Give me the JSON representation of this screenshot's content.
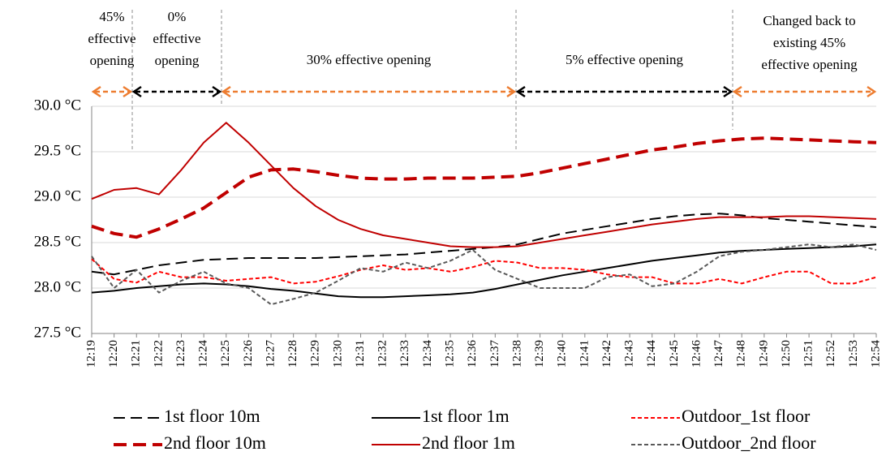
{
  "chart_data": {
    "type": "line",
    "categories": [
      "12:19",
      "12:20",
      "12:21",
      "12:22",
      "12:23",
      "12:24",
      "12:25",
      "12:26",
      "12:27",
      "12:28",
      "12:29",
      "12:30",
      "12:31",
      "12:32",
      "12:33",
      "12:34",
      "12:35",
      "12:36",
      "12:37",
      "12:38",
      "12:39",
      "12:40",
      "12:41",
      "12:42",
      "12:43",
      "12:44",
      "12:45",
      "12:46",
      "12:47",
      "12:48",
      "12:49",
      "12:50",
      "12:51",
      "12:52",
      "12:53",
      "12:54"
    ],
    "ylim": [
      27.5,
      30.0
    ],
    "yticks": [
      {
        "value": 27.5,
        "label": "27.5 °C"
      },
      {
        "value": 28.0,
        "label": "28.0 °C"
      },
      {
        "value": 28.5,
        "label": "28.5 °C"
      },
      {
        "value": 29.0,
        "label": "29.0 °C"
      },
      {
        "value": 29.5,
        "label": "29.5 °C"
      },
      {
        "value": 30.0,
        "label": "30.0 °C"
      }
    ],
    "grid": true,
    "legend": "bottom",
    "annotations": [
      {
        "lines": [
          "45%",
          "effective",
          "opening"
        ],
        "color": "#ed7d31"
      },
      {
        "lines": [
          "0%",
          "effective",
          "opening"
        ],
        "color": "#000000"
      },
      {
        "lines": [
          "30% effective opening"
        ],
        "color": "#ed7d31"
      },
      {
        "lines": [
          "5% effective opening"
        ],
        "color": "#000000"
      },
      {
        "lines": [
          "Changed back to",
          "existing 45%",
          "effective opening"
        ],
        "color": "#ed7d31"
      }
    ],
    "series": [
      {
        "name": "1st floor 10m",
        "color": "#000000",
        "line_style": "dashed",
        "line_width": 2,
        "values": [
          28.18,
          28.15,
          28.2,
          28.25,
          28.28,
          28.31,
          28.32,
          28.33,
          28.33,
          28.33,
          28.33,
          28.34,
          28.35,
          28.36,
          28.37,
          28.39,
          28.41,
          28.43,
          28.45,
          28.48,
          28.54,
          28.6,
          28.64,
          28.68,
          28.72,
          28.76,
          28.79,
          28.81,
          28.82,
          28.8,
          28.77,
          28.75,
          28.73,
          28.71,
          28.69,
          28.67
        ]
      },
      {
        "name": "2nd floor 10m",
        "color": "#c00000",
        "line_style": "dashed",
        "line_width": 4,
        "values": [
          28.68,
          28.6,
          28.56,
          28.65,
          28.76,
          28.88,
          29.05,
          29.22,
          29.3,
          29.31,
          29.28,
          29.24,
          29.21,
          29.2,
          29.2,
          29.21,
          29.21,
          29.21,
          29.22,
          29.23,
          29.27,
          29.32,
          29.37,
          29.42,
          29.47,
          29.52,
          29.55,
          29.59,
          29.62,
          29.64,
          29.65,
          29.64,
          29.63,
          29.62,
          29.61,
          29.6
        ]
      },
      {
        "name": "1st floor 1m",
        "color": "#000000",
        "line_style": "solid",
        "line_width": 2,
        "values": [
          27.95,
          27.97,
          28.0,
          28.02,
          28.04,
          28.05,
          28.04,
          28.02,
          27.99,
          27.97,
          27.94,
          27.91,
          27.9,
          27.9,
          27.91,
          27.92,
          27.93,
          27.95,
          27.99,
          28.04,
          28.09,
          28.14,
          28.18,
          28.22,
          28.26,
          28.3,
          28.33,
          28.36,
          28.39,
          28.41,
          28.42,
          28.43,
          28.44,
          28.45,
          28.46,
          28.48
        ]
      },
      {
        "name": "2nd floor 1m",
        "color": "#c00000",
        "line_style": "solid",
        "line_width": 2,
        "values": [
          28.98,
          29.08,
          29.1,
          29.03,
          29.3,
          29.6,
          29.82,
          29.6,
          29.35,
          29.1,
          28.9,
          28.75,
          28.65,
          28.58,
          28.54,
          28.5,
          28.46,
          28.45,
          28.45,
          28.46,
          28.5,
          28.54,
          28.58,
          28.62,
          28.66,
          28.7,
          28.73,
          28.76,
          28.78,
          28.78,
          28.78,
          28.79,
          28.79,
          28.78,
          28.77,
          28.76
        ]
      },
      {
        "name": "Outdoor_1st floor",
        "color": "#ff0000",
        "line_style": "dotted",
        "line_width": 2,
        "values": [
          28.32,
          28.1,
          28.06,
          28.18,
          28.12,
          28.12,
          28.08,
          28.1,
          28.12,
          28.05,
          28.07,
          28.13,
          28.2,
          28.25,
          28.2,
          28.22,
          28.18,
          28.23,
          28.3,
          28.28,
          28.22,
          28.22,
          28.2,
          28.15,
          28.12,
          28.12,
          28.05,
          28.05,
          28.1,
          28.05,
          28.12,
          28.18,
          28.18,
          28.05,
          28.05,
          28.12
        ]
      },
      {
        "name": "Outdoor_2nd floor",
        "color": "#595959",
        "line_style": "dotted",
        "line_width": 2,
        "values": [
          28.35,
          28.0,
          28.2,
          27.95,
          28.08,
          28.18,
          28.05,
          28.0,
          27.82,
          27.88,
          27.95,
          28.08,
          28.22,
          28.18,
          28.28,
          28.22,
          28.3,
          28.42,
          28.2,
          28.1,
          28.0,
          28.0,
          28.0,
          28.12,
          28.15,
          28.02,
          28.05,
          28.18,
          28.35,
          28.4,
          28.42,
          28.45,
          28.48,
          28.45,
          28.48,
          28.42
        ]
      }
    ]
  }
}
